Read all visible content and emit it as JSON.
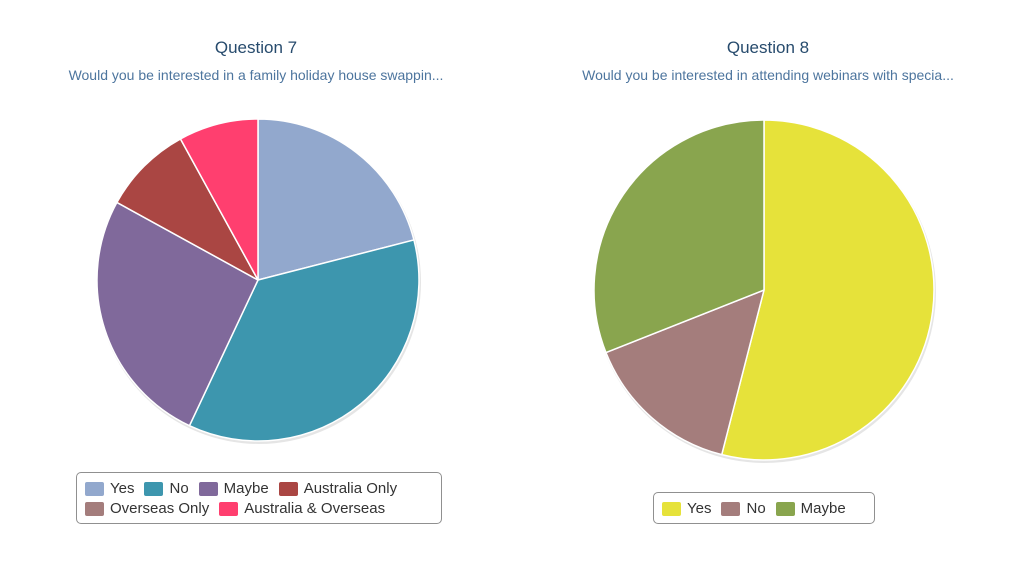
{
  "chart_data": [
    {
      "type": "pie",
      "title": "Question 7",
      "subtitle": "Would you be interested in a family holiday house swappin...",
      "legend": "bottom",
      "slices": [
        {
          "label": "Yes",
          "value": 21,
          "color": "#92a8cd"
        },
        {
          "label": "No",
          "value": 36,
          "color": "#3d96ae"
        },
        {
          "label": "Maybe",
          "value": 26,
          "color": "#80699b"
        },
        {
          "label": "Australia Only",
          "value": 9,
          "color": "#aa4643"
        },
        {
          "label": "Overseas Only",
          "value": 0,
          "color": "#a47d7c"
        },
        {
          "label": "Australia & Overseas",
          "value": 8,
          "color": "#ff3f6f"
        }
      ]
    },
    {
      "type": "pie",
      "title": "Question 8",
      "subtitle": "Would you be interested in attending webinars with specia...",
      "legend": "bottom",
      "slices": [
        {
          "label": "Yes",
          "value": 54,
          "color": "#e6e23a"
        },
        {
          "label": "No",
          "value": 15,
          "color": "#a47d7c"
        },
        {
          "label": "Maybe",
          "value": 31,
          "color": "#89a54e"
        }
      ]
    }
  ]
}
